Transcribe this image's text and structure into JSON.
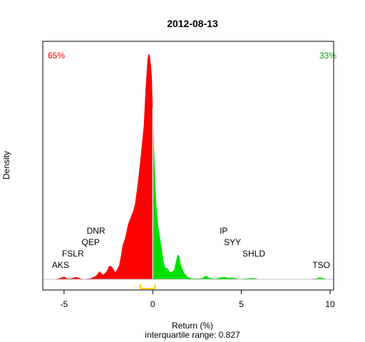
{
  "chart_data": {
    "type": "area",
    "title": "2012-08-13",
    "xlabel": "Return (%)",
    "ylabel": "Density",
    "subtitle": "interquartile range: 0.827",
    "xlim": [
      -6.2,
      10.2
    ],
    "ylim": [
      0,
      1.0
    ],
    "x_ticks": [
      -5,
      0,
      5,
      10
    ],
    "x_tick_labels": [
      "-5",
      "0",
      "5",
      "10"
    ],
    "negative_share_label": "65%",
    "positive_share_label": "33%",
    "negative_color": "#ff0000",
    "positive_color": "#00e000",
    "iqr_color": "#ffcc00",
    "iqr_range": [
      -0.7,
      0.13
    ],
    "density": {
      "x": [
        -6.0,
        -5.6,
        -5.3,
        -5.0,
        -4.8,
        -4.6,
        -4.3,
        -4.0,
        -3.8,
        -3.5,
        -3.2,
        -3.0,
        -2.8,
        -2.6,
        -2.45,
        -2.3,
        -2.1,
        -1.9,
        -1.8,
        -1.7,
        -1.6,
        -1.5,
        -1.4,
        -1.3,
        -1.2,
        -1.1,
        -1.0,
        -0.9,
        -0.8,
        -0.7,
        -0.6,
        -0.5,
        -0.45,
        -0.4,
        -0.35,
        -0.3,
        -0.25,
        -0.2,
        -0.15,
        -0.1,
        -0.05,
        0.0,
        0.05,
        0.1,
        0.15,
        0.2,
        0.3,
        0.4,
        0.5,
        0.6,
        0.7,
        0.8,
        0.9,
        1.0,
        1.2,
        1.4,
        1.5,
        1.6,
        1.8,
        2.0,
        2.2,
        2.5,
        2.8,
        3.0,
        3.2,
        3.5,
        3.8,
        4.0,
        4.3,
        4.5,
        4.8,
        5.0,
        5.3,
        5.5,
        5.7,
        5.9,
        6.2,
        6.8,
        7.5,
        8.5,
        9.0,
        9.2,
        9.4,
        9.6,
        9.8,
        10.0
      ],
      "y": [
        0,
        0,
        0.004,
        0.012,
        0.003,
        0.004,
        0.01,
        0.002,
        0.002,
        0.004,
        0.015,
        0.035,
        0.02,
        0.035,
        0.06,
        0.055,
        0.03,
        0.06,
        0.1,
        0.15,
        0.17,
        0.2,
        0.24,
        0.26,
        0.28,
        0.3,
        0.33,
        0.39,
        0.45,
        0.52,
        0.6,
        0.68,
        0.76,
        0.84,
        0.9,
        0.96,
        0.985,
        0.99,
        0.97,
        0.94,
        0.89,
        0.75,
        0.63,
        0.52,
        0.42,
        0.33,
        0.24,
        0.19,
        0.14,
        0.08,
        0.05,
        0.05,
        0.04,
        0.03,
        0.04,
        0.11,
        0.1,
        0.06,
        0.025,
        0.008,
        0.004,
        0.003,
        0.005,
        0.016,
        0.006,
        0.002,
        0.008,
        0.01,
        0.006,
        0.008,
        0.002,
        0.002,
        0.004,
        0.005,
        0.006,
        0.002,
        0,
        0,
        0,
        0,
        0.002,
        0.003,
        0.008,
        0.006,
        0,
        0
      ]
    },
    "annotations": [
      {
        "text": "AKS",
        "x": -5.2,
        "y": 0.05
      },
      {
        "text": "FSLR",
        "x": -4.5,
        "y": 0.1
      },
      {
        "text": "QEP",
        "x": -3.5,
        "y": 0.15
      },
      {
        "text": "DNR",
        "x": -3.2,
        "y": 0.2
      },
      {
        "text": "IP",
        "x": 4.0,
        "y": 0.2
      },
      {
        "text": "SYY",
        "x": 4.5,
        "y": 0.15
      },
      {
        "text": "SHLD",
        "x": 5.7,
        "y": 0.1
      },
      {
        "text": "TSO",
        "x": 9.5,
        "y": 0.05
      }
    ]
  }
}
